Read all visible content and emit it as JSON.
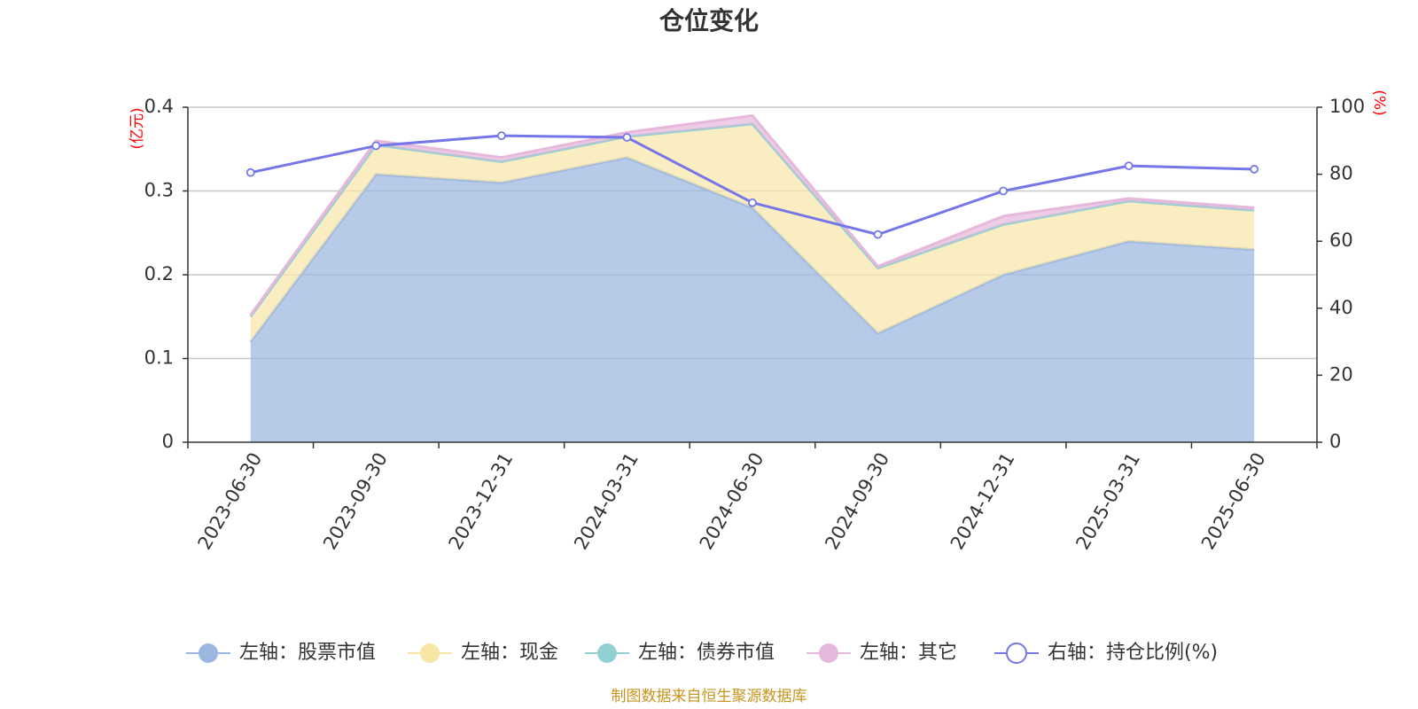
{
  "chart_data": {
    "type": "area",
    "title": "仓位变化",
    "left_unit": "(亿元)",
    "right_unit": "(%)",
    "categories": [
      "2023-06-30",
      "2023-09-30",
      "2023-12-31",
      "2024-03-31",
      "2024-06-30",
      "2024-09-30",
      "2024-12-31",
      "2025-03-31",
      "2025-06-30"
    ],
    "left_axis": {
      "ylim": [
        0,
        0.4
      ],
      "ticks": [
        "0",
        "0.1",
        "0.2",
        "0.3",
        "0.4"
      ]
    },
    "right_axis": {
      "ylim": [
        0,
        100
      ],
      "ticks": [
        "0",
        "20",
        "40",
        "60",
        "80",
        "100"
      ]
    },
    "grid": true,
    "legend_position": "bottom",
    "series": [
      {
        "name": "左轴：股票市值",
        "axis": "left",
        "stack": true,
        "color": "#9bb7e0",
        "values": [
          0.12,
          0.32,
          0.31,
          0.34,
          0.28,
          0.13,
          0.2,
          0.24,
          0.23
        ]
      },
      {
        "name": "左轴：现金",
        "axis": "left",
        "stack": true,
        "color": "#f8e6a6",
        "values": [
          0.03,
          0.035,
          0.025,
          0.025,
          0.1,
          0.078,
          0.06,
          0.048,
          0.047
        ]
      },
      {
        "name": "左轴：债券市值",
        "axis": "left",
        "stack": true,
        "color": "#92d0d4",
        "values": [
          0,
          0,
          0,
          0,
          0,
          0,
          0,
          0,
          0
        ]
      },
      {
        "name": "左轴：其它",
        "axis": "left",
        "stack": true,
        "color": "#e6b8db",
        "values": [
          0.002,
          0.005,
          0.005,
          0.005,
          0.01,
          0.002,
          0.01,
          0.003,
          0.003
        ]
      },
      {
        "name": "右轴：持仓比例(%)",
        "axis": "right",
        "type": "line",
        "color": "#7577e8",
        "values": [
          80.5,
          88.5,
          91.5,
          91,
          71.5,
          62,
          75,
          82.5,
          81.5
        ]
      }
    ]
  },
  "source": "制图数据来自恒生聚源数据库"
}
